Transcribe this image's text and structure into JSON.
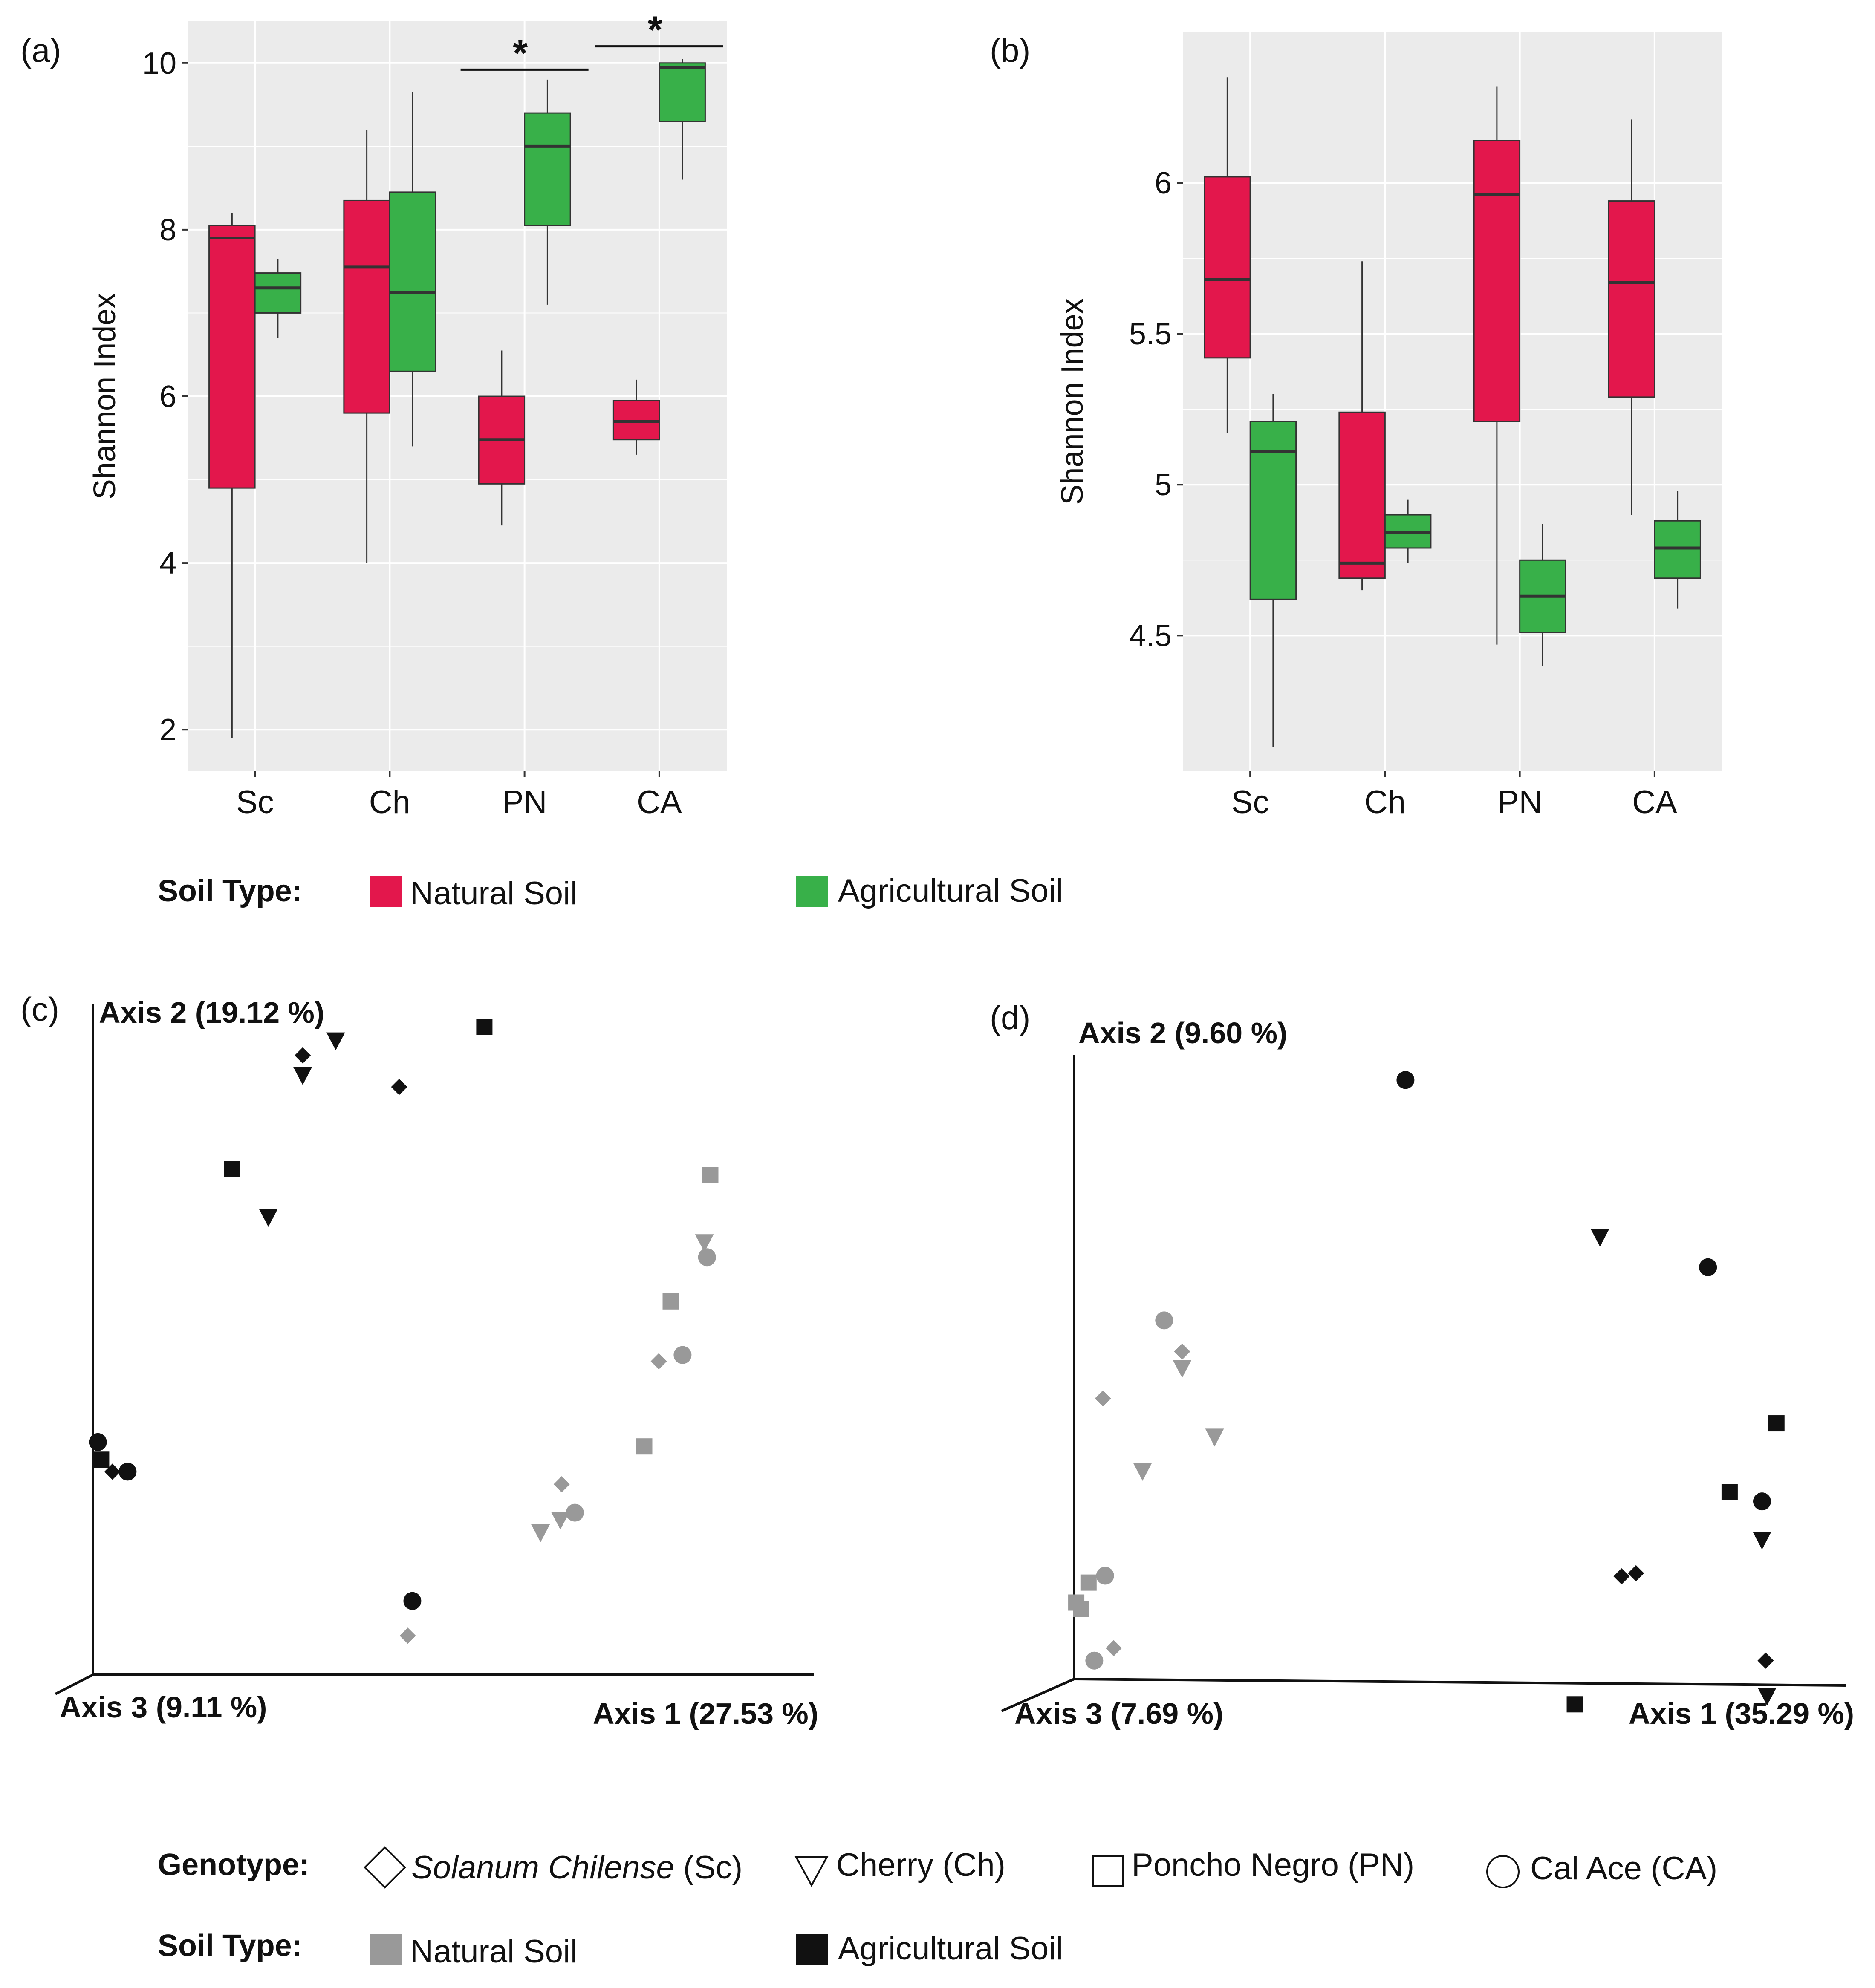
{
  "panels": [
    {
      "id": "a",
      "label": "(a)"
    },
    {
      "id": "b",
      "label": "(b)"
    },
    {
      "id": "c",
      "label": "(c)"
    },
    {
      "id": "d",
      "label": "(d)"
    }
  ],
  "colors": {
    "natural_box": "#e3174c",
    "agricultural_box": "#38b049",
    "plot_bg": "#ebebeb",
    "grid": "#ffffff",
    "natural_point": "#999999",
    "agricultural_point": "#111111"
  },
  "legend_boxplot": {
    "title": "Soil Type:",
    "items": [
      {
        "label": "Natural Soil",
        "color": "#e3174c"
      },
      {
        "label": "Agricultural Soil",
        "color": "#38b049"
      }
    ]
  },
  "legend_genotype": {
    "title": "Genotype:",
    "items": [
      {
        "shape": "diamond",
        "label_italic": "Solanum Chilense",
        "label_rest": " (Sc)"
      },
      {
        "shape": "triangle",
        "label_italic": "",
        "label_rest": "Cherry (Ch)"
      },
      {
        "shape": "square",
        "label_italic": "",
        "label_rest": "Poncho Negro (PN)"
      },
      {
        "shape": "circle",
        "label_italic": "",
        "label_rest": "Cal Ace (CA)"
      }
    ]
  },
  "legend_pcoa_soil": {
    "title": "Soil Type:",
    "items": [
      {
        "label": "Natural Soil",
        "color": "#999999"
      },
      {
        "label": "Agricultural Soil",
        "color": "#111111"
      }
    ]
  },
  "chart_data": [
    {
      "panel": "a",
      "type": "boxplot",
      "ylabel": "Shannon Index",
      "ylim": [
        1.5,
        10.5
      ],
      "yticks": [
        2,
        4,
        6,
        8,
        10
      ],
      "categories": [
        "Sc",
        "Ch",
        "PN",
        "CA"
      ],
      "series": [
        {
          "name": "Natural Soil",
          "color": "#e3174c",
          "boxes": [
            {
              "min": 1.9,
              "q1": 4.9,
              "median": 7.9,
              "q3": 8.05,
              "max": 8.2
            },
            {
              "min": 4.0,
              "q1": 5.8,
              "median": 7.55,
              "q3": 8.35,
              "max": 9.2
            },
            {
              "min": 4.45,
              "q1": 4.95,
              "median": 5.48,
              "q3": 6.0,
              "max": 6.55
            },
            {
              "min": 5.3,
              "q1": 5.48,
              "median": 5.7,
              "q3": 5.95,
              "max": 6.2
            }
          ]
        },
        {
          "name": "Agricultural Soil",
          "color": "#38b049",
          "boxes": [
            {
              "min": 6.7,
              "q1": 7.0,
              "median": 7.3,
              "q3": 7.48,
              "max": 7.65
            },
            {
              "min": 5.4,
              "q1": 6.3,
              "median": 7.25,
              "q3": 8.45,
              "max": 9.65
            },
            {
              "min": 7.1,
              "q1": 8.05,
              "median": 9.0,
              "q3": 9.4,
              "max": 9.8
            },
            {
              "min": 8.6,
              "q1": 9.3,
              "median": 9.95,
              "q3": 10.0,
              "max": 10.05
            }
          ]
        }
      ],
      "significance": [
        {
          "category": "PN",
          "label": "*",
          "y": 9.92
        },
        {
          "category": "CA",
          "label": "*",
          "y": 10.2
        }
      ]
    },
    {
      "panel": "b",
      "type": "boxplot",
      "ylabel": "Shannon Index",
      "ylim": [
        4.05,
        6.5
      ],
      "yticks": [
        4.5,
        5,
        5.5,
        6
      ],
      "yticklabels": [
        "4.5",
        "5",
        "5.5",
        "6"
      ],
      "categories": [
        "Sc",
        "Ch",
        "PN",
        "CA"
      ],
      "series": [
        {
          "name": "Natural Soil",
          "color": "#e3174c",
          "boxes": [
            {
              "min": 5.17,
              "q1": 5.42,
              "median": 5.68,
              "q3": 6.02,
              "max": 6.35
            },
            {
              "min": 4.65,
              "q1": 4.69,
              "median": 4.74,
              "q3": 5.24,
              "max": 5.74
            },
            {
              "min": 4.47,
              "q1": 5.21,
              "median": 5.96,
              "q3": 6.14,
              "max": 6.32
            },
            {
              "min": 4.9,
              "q1": 5.29,
              "median": 5.67,
              "q3": 5.94,
              "max": 6.21
            }
          ]
        },
        {
          "name": "Agricultural Soil",
          "color": "#38b049",
          "boxes": [
            {
              "min": 4.13,
              "q1": 4.62,
              "median": 5.11,
              "q3": 5.21,
              "max": 5.3
            },
            {
              "min": 4.74,
              "q1": 4.79,
              "median": 4.84,
              "q3": 4.9,
              "max": 4.95
            },
            {
              "min": 4.4,
              "q1": 4.51,
              "median": 4.63,
              "q3": 4.75,
              "max": 4.87
            },
            {
              "min": 4.59,
              "q1": 4.69,
              "median": 4.79,
              "q3": 4.88,
              "max": 4.98
            }
          ]
        }
      ]
    },
    {
      "panel": "c",
      "type": "scatter",
      "axes": {
        "x": "Axis 1 (27.53 %)",
        "y": "Axis 2 (19.12 %)",
        "z": "Axis 3 (9.11 %)"
      },
      "points": [
        {
          "x": 0.588,
          "y": 1.0,
          "shape": "square",
          "soil": "Agricultural"
        },
        {
          "x": 0.363,
          "y": 0.98,
          "shape": "triangle",
          "soil": "Agricultural"
        },
        {
          "x": 0.313,
          "y": 0.955,
          "shape": "diamond",
          "soil": "Agricultural"
        },
        {
          "x": 0.313,
          "y": 0.925,
          "shape": "triangle",
          "soil": "Agricultural"
        },
        {
          "x": 0.459,
          "y": 0.905,
          "shape": "diamond",
          "soil": "Agricultural"
        },
        {
          "x": 0.206,
          "y": 0.775,
          "shape": "square",
          "soil": "Agricultural"
        },
        {
          "x": 0.261,
          "y": 0.7,
          "shape": "triangle",
          "soil": "Agricultural"
        },
        {
          "x": 0.003,
          "y": 0.342,
          "shape": "circle",
          "soil": "Agricultural"
        },
        {
          "x": 0.008,
          "y": 0.314,
          "shape": "square",
          "soil": "Agricultural"
        },
        {
          "x": 0.025,
          "y": 0.295,
          "shape": "diamond",
          "soil": "Agricultural"
        },
        {
          "x": 0.048,
          "y": 0.295,
          "shape": "circle",
          "soil": "Agricultural"
        },
        {
          "x": 0.479,
          "y": 0.09,
          "shape": "circle",
          "soil": "Agricultural"
        },
        {
          "x": 0.93,
          "y": 0.765,
          "shape": "square",
          "soil": "Natural"
        },
        {
          "x": 0.921,
          "y": 0.66,
          "shape": "triangle",
          "soil": "Natural"
        },
        {
          "x": 0.925,
          "y": 0.635,
          "shape": "circle",
          "soil": "Natural"
        },
        {
          "x": 0.87,
          "y": 0.565,
          "shape": "square",
          "soil": "Natural"
        },
        {
          "x": 0.888,
          "y": 0.48,
          "shape": "circle",
          "soil": "Natural"
        },
        {
          "x": 0.852,
          "y": 0.47,
          "shape": "diamond",
          "soil": "Natural"
        },
        {
          "x": 0.83,
          "y": 0.335,
          "shape": "square",
          "soil": "Natural"
        },
        {
          "x": 0.705,
          "y": 0.275,
          "shape": "diamond",
          "soil": "Natural"
        },
        {
          "x": 0.725,
          "y": 0.23,
          "shape": "circle",
          "soil": "Natural"
        },
        {
          "x": 0.703,
          "y": 0.22,
          "shape": "triangle",
          "soil": "Natural"
        },
        {
          "x": 0.673,
          "y": 0.2,
          "shape": "triangle",
          "soil": "Natural"
        },
        {
          "x": 0.472,
          "y": 0.035,
          "shape": "diamond",
          "soil": "Natural"
        }
      ]
    },
    {
      "panel": "d",
      "type": "scatter",
      "axes": {
        "x": "Axis 1 (35.29 %)",
        "y": "Axis 2 (9.60 %)",
        "z": "Axis 3 (7.69 %)"
      },
      "points": [
        {
          "x": 0.46,
          "y": 0.98,
          "shape": "circle",
          "soil": "Agricultural"
        },
        {
          "x": 0.73,
          "y": 0.73,
          "shape": "triangle",
          "soil": "Agricultural"
        },
        {
          "x": 0.88,
          "y": 0.68,
          "shape": "circle",
          "soil": "Agricultural"
        },
        {
          "x": 0.975,
          "y": 0.43,
          "shape": "square",
          "soil": "Agricultural"
        },
        {
          "x": 0.91,
          "y": 0.32,
          "shape": "square",
          "soil": "Agricultural"
        },
        {
          "x": 0.955,
          "y": 0.305,
          "shape": "circle",
          "soil": "Agricultural"
        },
        {
          "x": 0.955,
          "y": 0.245,
          "shape": "triangle",
          "soil": "Agricultural"
        },
        {
          "x": 0.76,
          "y": 0.185,
          "shape": "diamond",
          "soil": "Agricultural"
        },
        {
          "x": 0.78,
          "y": 0.19,
          "shape": "diamond",
          "soil": "Agricultural"
        },
        {
          "x": 0.96,
          "y": 0.05,
          "shape": "diamond",
          "soil": "Agricultural"
        },
        {
          "x": 0.962,
          "y": -0.005,
          "shape": "triangle",
          "soil": "Agricultural"
        },
        {
          "x": 0.695,
          "y": -0.02,
          "shape": "square",
          "soil": "Agricultural"
        },
        {
          "x": 0.125,
          "y": 0.595,
          "shape": "circle",
          "soil": "Natural"
        },
        {
          "x": 0.15,
          "y": 0.545,
          "shape": "diamond",
          "soil": "Natural"
        },
        {
          "x": 0.15,
          "y": 0.52,
          "shape": "triangle",
          "soil": "Natural"
        },
        {
          "x": 0.04,
          "y": 0.47,
          "shape": "diamond",
          "soil": "Natural"
        },
        {
          "x": 0.195,
          "y": 0.41,
          "shape": "triangle",
          "soil": "Natural"
        },
        {
          "x": 0.095,
          "y": 0.355,
          "shape": "triangle",
          "soil": "Natural"
        },
        {
          "x": 0.043,
          "y": 0.186,
          "shape": "circle",
          "soil": "Natural"
        },
        {
          "x": 0.02,
          "y": 0.175,
          "shape": "square",
          "soil": "Natural"
        },
        {
          "x": 0.003,
          "y": 0.143,
          "shape": "square",
          "soil": "Natural"
        },
        {
          "x": 0.01,
          "y": 0.133,
          "shape": "square",
          "soil": "Natural"
        },
        {
          "x": 0.055,
          "y": 0.07,
          "shape": "diamond",
          "soil": "Natural"
        },
        {
          "x": 0.028,
          "y": 0.05,
          "shape": "circle",
          "soil": "Natural"
        }
      ]
    }
  ]
}
